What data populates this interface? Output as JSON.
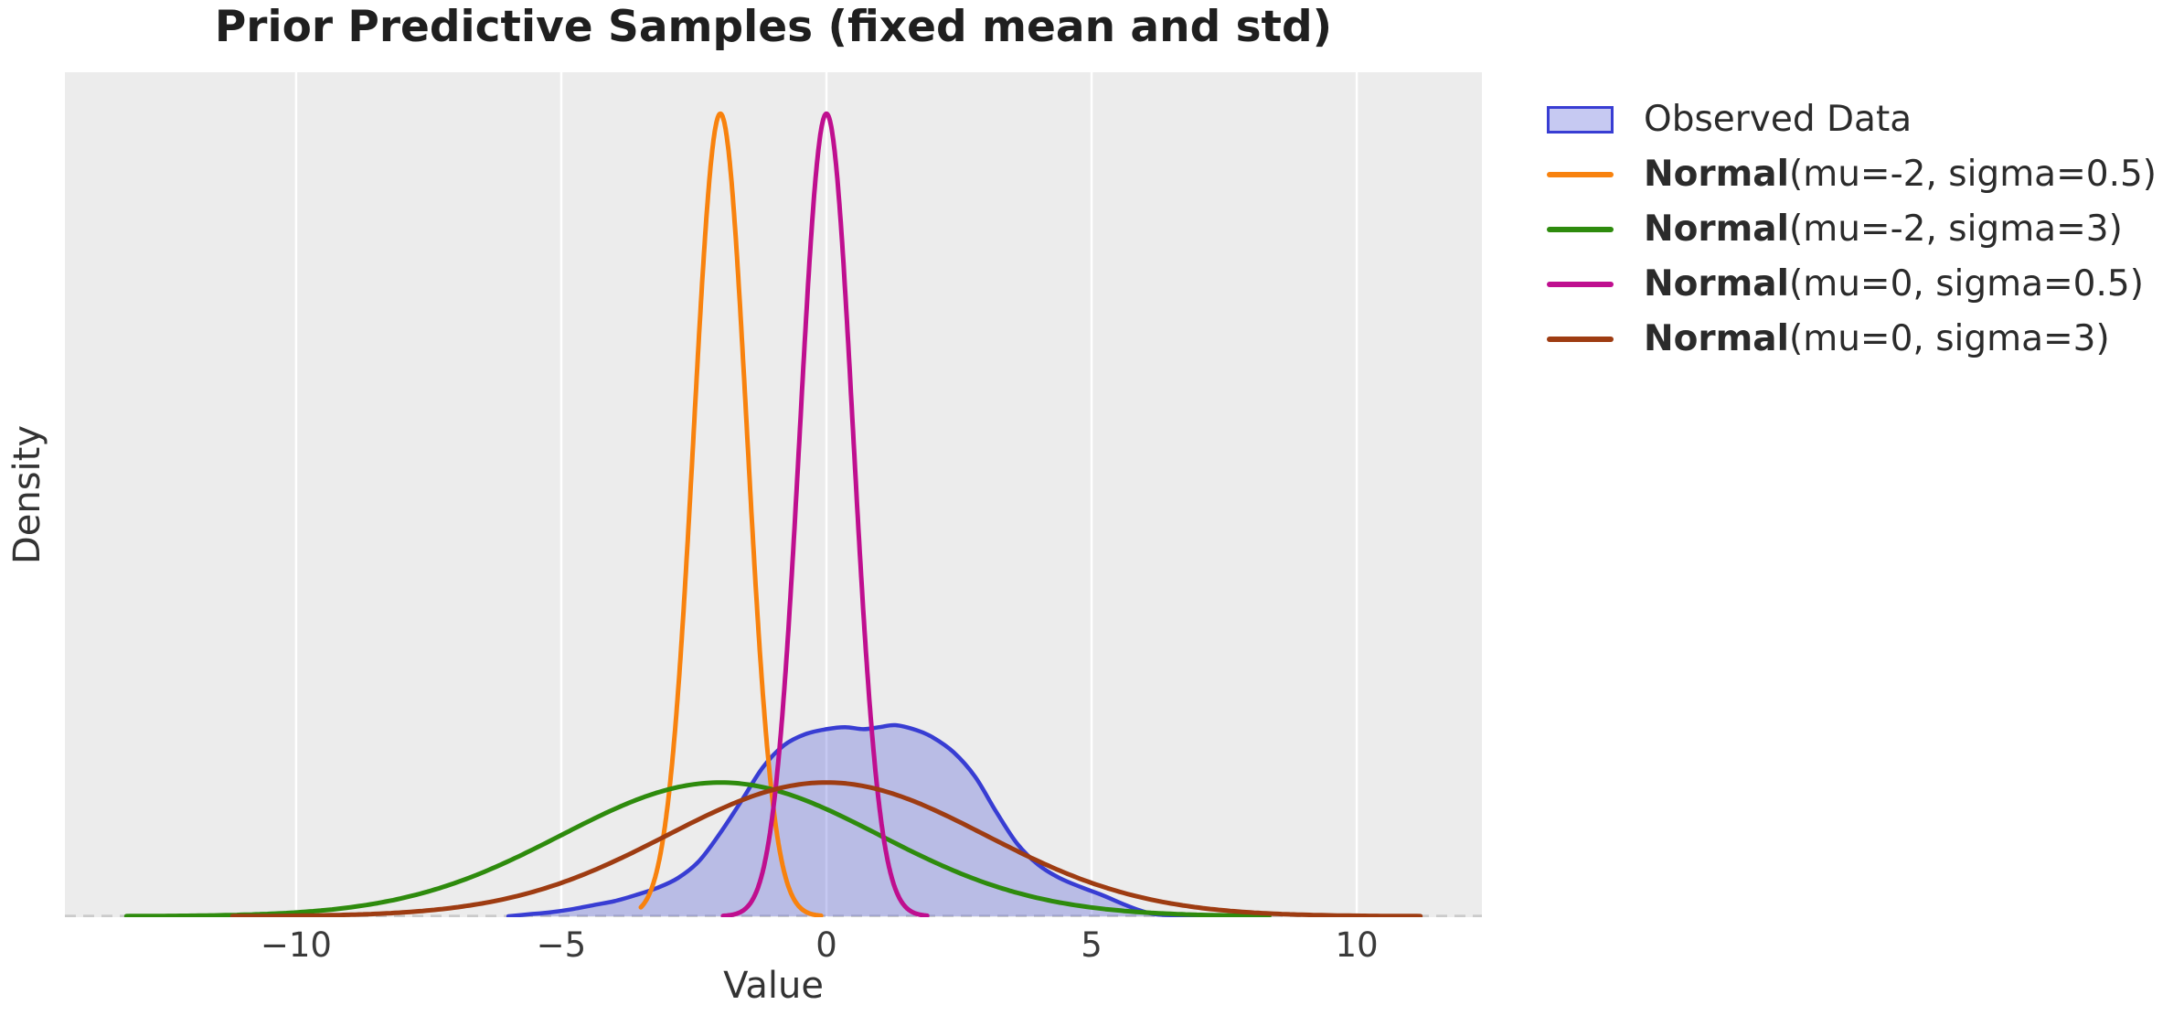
{
  "title": "Prior Predictive Samples (fixed mean and std)",
  "axes": {
    "xlabel": "Value",
    "ylabel": "Density",
    "background": "#ececec",
    "grid_color": "#ffffff",
    "zero_line_color": "#cbcbcb"
  },
  "xtick_labels": [
    "−10",
    "−5",
    "0",
    "5",
    "10"
  ],
  "legend": {
    "items": [
      {
        "type": "patch",
        "label": "Observed Data",
        "fill": "rgba(65,75,212,0.30)",
        "edge": "#383dd3"
      },
      {
        "type": "line",
        "label_bold": "Normal",
        "label_rest": "(mu=-2, sigma=0.5)",
        "color": "#f8820e"
      },
      {
        "type": "line",
        "label_bold": "Normal",
        "label_rest": "(mu=-2, sigma=3)",
        "color": "#2e8b0d"
      },
      {
        "type": "line",
        "label_bold": "Normal",
        "label_rest": "(mu=0, sigma=0.5)",
        "color": "#bf0f8f"
      },
      {
        "type": "line",
        "label_bold": "Normal",
        "label_rest": "(mu=0, sigma=3)",
        "color": "#9e3c12"
      }
    ]
  },
  "chart_data": {
    "type": "line",
    "title": "Prior Predictive Samples (fixed mean and std)",
    "xlabel": "Value",
    "ylabel": "Density",
    "xlim": [
      -14.36,
      12.36
    ],
    "ylim": [
      0,
      0.84
    ],
    "xticks": [
      -10,
      -5,
      0,
      5,
      10
    ],
    "yticks": [],
    "grid": "x-only",
    "legend_position": "outside-right",
    "zero_line": {
      "y": 0,
      "style": "dashed"
    },
    "series": [
      {
        "name": "Observed Data",
        "kind": "kde_fill",
        "edge_color": "#383dd3",
        "fill_color": "rgba(65,75,212,0.30)",
        "points": [
          [
            -6.0,
            0.0
          ],
          [
            -5.6,
            0.002
          ],
          [
            -5.2,
            0.004
          ],
          [
            -4.8,
            0.007
          ],
          [
            -4.4,
            0.011
          ],
          [
            -4.0,
            0.015
          ],
          [
            -3.6,
            0.021
          ],
          [
            -3.2,
            0.028
          ],
          [
            -2.8,
            0.038
          ],
          [
            -2.4,
            0.055
          ],
          [
            -2.0,
            0.083
          ],
          [
            -1.6,
            0.115
          ],
          [
            -1.2,
            0.148
          ],
          [
            -0.8,
            0.17
          ],
          [
            -0.4,
            0.181
          ],
          [
            0.0,
            0.186
          ],
          [
            0.35,
            0.188
          ],
          [
            0.7,
            0.186
          ],
          [
            1.0,
            0.188
          ],
          [
            1.3,
            0.19
          ],
          [
            1.7,
            0.185
          ],
          [
            2.0,
            0.178
          ],
          [
            2.4,
            0.163
          ],
          [
            2.8,
            0.139
          ],
          [
            3.2,
            0.104
          ],
          [
            3.6,
            0.072
          ],
          [
            4.0,
            0.051
          ],
          [
            4.4,
            0.038
          ],
          [
            4.8,
            0.029
          ],
          [
            5.2,
            0.021
          ],
          [
            5.6,
            0.012
          ],
          [
            5.9,
            0.006
          ],
          [
            6.2,
            0.002
          ],
          [
            6.6,
            0.001
          ],
          [
            7.2,
            0.0005
          ],
          [
            7.25,
            0.0
          ]
        ]
      },
      {
        "name": "Normal(mu=-2, sigma=0.5)",
        "kind": "normal_pdf",
        "mu": -2,
        "sigma": 0.5,
        "peak_density": 0.798,
        "x_range": [
          -3.5,
          -0.1
        ],
        "color": "#f8820e"
      },
      {
        "name": "Normal(mu=-2, sigma=3)",
        "kind": "normal_pdf",
        "mu": -2,
        "sigma": 3,
        "peak_density": 0.133,
        "x_range": [
          -13.2,
          8.35
        ],
        "color": "#2e8b0d"
      },
      {
        "name": "Normal(mu=0, sigma=0.5)",
        "kind": "normal_pdf",
        "mu": 0,
        "sigma": 0.5,
        "peak_density": 0.798,
        "x_range": [
          -1.95,
          1.9
        ],
        "color": "#bf0f8f"
      },
      {
        "name": "Normal(mu=0, sigma=3)",
        "kind": "normal_pdf",
        "mu": 0,
        "sigma": 3,
        "peak_density": 0.133,
        "x_range": [
          -11.2,
          11.2
        ],
        "color": "#9e3c12"
      }
    ]
  }
}
